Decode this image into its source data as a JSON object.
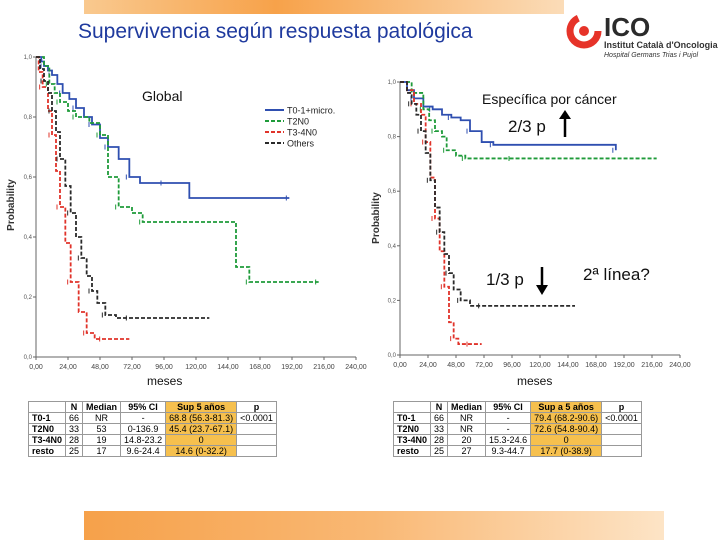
{
  "slide": {
    "title": "Supervivencia según respuesta patológica",
    "logo": {
      "name": "ICO",
      "line1": "Institut Català d'Oncologia",
      "line2": "Hospital Germans Trias i Pujol"
    },
    "meses_left": "meses",
    "meses_right": "meses",
    "note_top": "2/3 p",
    "note_bottom": "1/3 p",
    "question": "2ª línea?"
  },
  "colors": {
    "blue": "#2f4fb0",
    "green": "#1f9b3a",
    "red": "#e0332a",
    "black": "#2a2a2a",
    "highlight": "#f6c04e"
  },
  "chart_data": [
    {
      "type": "line",
      "title": "Global",
      "xlabel": "",
      "ylabel": "Probability",
      "xlim": [
        0,
        240
      ],
      "ylim": [
        0,
        1.0
      ],
      "xticks": [
        "0,00",
        "24,00",
        "48,00",
        "72,00",
        "96,00",
        "120,00",
        "144,00",
        "168,00",
        "192,00",
        "216,00",
        "240,00"
      ],
      "yticks": [
        "0,0",
        "0,2",
        "0,4",
        "0,6",
        "0,8",
        "1,0"
      ],
      "legend": [
        "T0-1+micro.",
        "T2N0",
        "T3-4N0",
        "Others"
      ],
      "series": [
        {
          "name": "T0-1+micro.",
          "color": "blue",
          "x": [
            0,
            4,
            6,
            9,
            12,
            16,
            20,
            25,
            30,
            36,
            42,
            48,
            54,
            62,
            70,
            78,
            96,
            115,
            190
          ],
          "y": [
            1.0,
            0.985,
            0.97,
            0.955,
            0.94,
            0.91,
            0.88,
            0.86,
            0.83,
            0.8,
            0.775,
            0.73,
            0.7,
            0.66,
            0.6,
            0.58,
            0.58,
            0.53,
            0.53
          ]
        },
        {
          "name": "T2N0",
          "color": "green",
          "x": [
            0,
            6,
            10,
            14,
            18,
            24,
            30,
            40,
            48,
            54,
            62,
            72,
            80,
            150,
            160,
            178,
            212
          ],
          "y": [
            1.0,
            0.97,
            0.91,
            0.88,
            0.85,
            0.82,
            0.8,
            0.78,
            0.74,
            0.6,
            0.5,
            0.48,
            0.45,
            0.3,
            0.25,
            0.25,
            0.25
          ]
        },
        {
          "name": "T3-4N0",
          "color": "red",
          "x": [
            0,
            2,
            5,
            9,
            12,
            15,
            18,
            22,
            26,
            32,
            38,
            44,
            50,
            70
          ],
          "y": [
            1.0,
            0.95,
            0.9,
            0.82,
            0.74,
            0.62,
            0.5,
            0.38,
            0.25,
            0.15,
            0.08,
            0.06,
            0.06,
            0.06
          ]
        },
        {
          "name": "Others",
          "color": "black",
          "x": [
            0,
            3,
            6,
            9,
            12,
            15,
            18,
            22,
            26,
            30,
            34,
            38,
            42,
            46,
            52,
            60,
            70,
            130
          ],
          "y": [
            1.0,
            0.96,
            0.92,
            0.88,
            0.82,
            0.75,
            0.66,
            0.57,
            0.48,
            0.4,
            0.33,
            0.27,
            0.22,
            0.18,
            0.14,
            0.13,
            0.13,
            0.13
          ]
        }
      ]
    },
    {
      "type": "line",
      "title": "Específica por cáncer",
      "xlabel": "",
      "ylabel": "Probability",
      "xlim": [
        0,
        240
      ],
      "ylim": [
        0,
        1.0
      ],
      "xticks": [
        "0,00",
        "24,00",
        "48,00",
        "72,00",
        "96,00",
        "120,00",
        "144,00",
        "168,00",
        "192,00",
        "216,00",
        "240,00"
      ],
      "yticks": [
        "0,0",
        "0,2",
        "0,4",
        "0,6",
        "0,8",
        "1,0"
      ],
      "series": [
        {
          "name": "T0-1+micro.",
          "color": "blue",
          "x": [
            0,
            6,
            12,
            20,
            28,
            36,
            44,
            52,
            60,
            70,
            80,
            155,
            185
          ],
          "y": [
            1.0,
            0.97,
            0.94,
            0.91,
            0.9,
            0.88,
            0.87,
            0.86,
            0.82,
            0.78,
            0.77,
            0.77,
            0.75
          ]
        },
        {
          "name": "T2N0",
          "color": "green",
          "x": [
            0,
            10,
            20,
            25,
            30,
            36,
            40,
            48,
            56,
            66,
            96,
            220
          ],
          "y": [
            1.0,
            0.96,
            0.9,
            0.86,
            0.82,
            0.8,
            0.75,
            0.73,
            0.72,
            0.72,
            0.72,
            0.72
          ]
        },
        {
          "name": "T3-4N0",
          "color": "red",
          "x": [
            0,
            6,
            12,
            18,
            22,
            26,
            30,
            34,
            38,
            42,
            46,
            50,
            60,
            70
          ],
          "y": [
            1.0,
            0.97,
            0.92,
            0.88,
            0.78,
            0.65,
            0.5,
            0.38,
            0.25,
            0.12,
            0.06,
            0.04,
            0.04,
            0.04
          ]
        },
        {
          "name": "Others",
          "color": "black",
          "x": [
            0,
            6,
            10,
            14,
            18,
            22,
            26,
            30,
            34,
            38,
            42,
            46,
            52,
            60,
            70,
            150
          ],
          "y": [
            1.0,
            0.96,
            0.92,
            0.88,
            0.82,
            0.74,
            0.64,
            0.54,
            0.45,
            0.37,
            0.3,
            0.24,
            0.2,
            0.18,
            0.18,
            0.18
          ]
        }
      ]
    }
  ],
  "table_left": {
    "headers": [
      "",
      "N",
      "Median",
      "95% CI",
      "Sup 5 años",
      "p"
    ],
    "rows": [
      [
        "T0-1",
        "66",
        "NR",
        "-",
        "68.8 (56.3-81.3)",
        "<0.0001"
      ],
      [
        "T2N0",
        "33",
        "53",
        "0-136.9",
        "45.4 (23.7-67.1)",
        ""
      ],
      [
        "T3-4N0",
        "28",
        "19",
        "14.8-23.2",
        "0",
        ""
      ],
      [
        "resto",
        "25",
        "17",
        "9.6-24.4",
        "14.6 (0-32.2)",
        ""
      ]
    ]
  },
  "table_right": {
    "headers": [
      "",
      "N",
      "Median",
      "95% CI",
      "Sup a 5 años",
      "p"
    ],
    "rows": [
      [
        "T0-1",
        "66",
        "NR",
        "-",
        "79.4 (68.2-90.6)",
        "<0.0001"
      ],
      [
        "T2N0",
        "33",
        "NR",
        "-",
        "72.6 (54.8-90.4)",
        ""
      ],
      [
        "T3-4N0",
        "28",
        "20",
        "15.3-24.6",
        "0",
        ""
      ],
      [
        "resto",
        "25",
        "27",
        "9.3-44.7",
        "17.7 (0-38.9)",
        ""
      ]
    ]
  }
}
